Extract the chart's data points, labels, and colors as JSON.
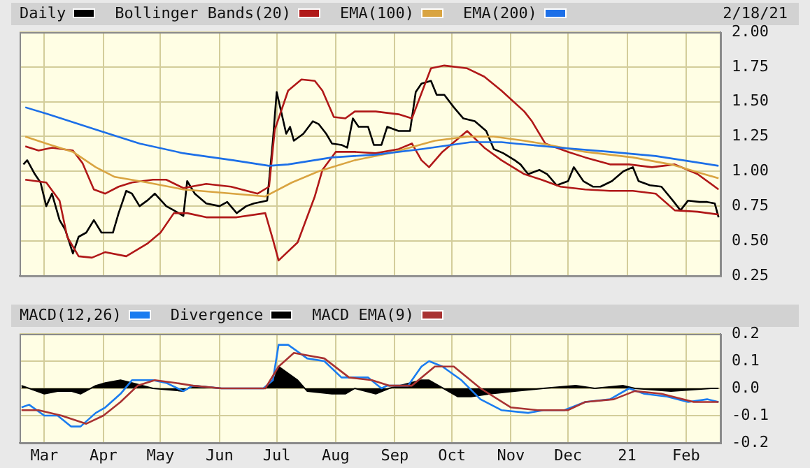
{
  "chart_data": [
    {
      "type": "line",
      "legend": "top",
      "grid": true,
      "tick_labels": "y",
      "annotations": [
        "2/18/21"
      ],
      "xlim": [
        "2020-02-17",
        "2021-02-19"
      ],
      "xticks": [
        {
          "value": "2020-03-01",
          "label": null
        },
        {
          "value": "2020-04-01",
          "label": null
        },
        {
          "value": "2020-05-01",
          "label": null
        },
        {
          "value": "2020-06-01",
          "label": null
        },
        {
          "value": "2020-07-01",
          "label": null
        },
        {
          "value": "2020-08-01",
          "label": null
        },
        {
          "value": "2020-09-01",
          "label": null
        },
        {
          "value": "2020-10-01",
          "label": null
        },
        {
          "value": "2020-11-01",
          "label": null
        },
        {
          "value": "2020-12-01",
          "label": null
        },
        {
          "value": "2021-01-01",
          "label": null
        },
        {
          "value": "2021-02-01",
          "label": null
        }
      ],
      "ylim": [
        0.25,
        2
      ],
      "yticks": [
        {
          "value": 0.25,
          "label": "0.25"
        },
        {
          "value": 0.5,
          "label": "0.50"
        },
        {
          "value": 0.75,
          "label": "0.75"
        },
        {
          "value": 1,
          "label": "1.00"
        },
        {
          "value": 1.25,
          "label": "1.25"
        },
        {
          "value": 1.5,
          "label": "1.50"
        },
        {
          "value": 1.75,
          "label": "1.75"
        },
        {
          "value": 2,
          "label": "2.00"
        }
      ],
      "series": [
        {
          "name": "Daily",
          "color": "#000000",
          "x": [
            "2020-02-19",
            "2020-02-21",
            "2020-02-25",
            "2020-02-28",
            "2020-03-02",
            "2020-03-05",
            "2020-03-09",
            "2020-03-12",
            "2020-03-16",
            "2020-03-19",
            "2020-03-23",
            "2020-03-27",
            "2020-03-31",
            "2020-04-06",
            "2020-04-09",
            "2020-04-13",
            "2020-04-16",
            "2020-04-20",
            "2020-04-24",
            "2020-04-28",
            "2020-05-04",
            "2020-05-08",
            "2020-05-13",
            "2020-05-15",
            "2020-05-19",
            "2020-05-25",
            "2020-06-01",
            "2020-06-05",
            "2020-06-10",
            "2020-06-15",
            "2020-06-19",
            "2020-06-26",
            "2020-06-29",
            "2020-07-01",
            "2020-07-06",
            "2020-07-08",
            "2020-07-10",
            "2020-07-15",
            "2020-07-20",
            "2020-07-23",
            "2020-07-27",
            "2020-07-30",
            "2020-08-04",
            "2020-08-07",
            "2020-08-10",
            "2020-08-13",
            "2020-08-18",
            "2020-08-21",
            "2020-08-25",
            "2020-08-28",
            "2020-09-03",
            "2020-09-09",
            "2020-09-12",
            "2020-09-15",
            "2020-09-20",
            "2020-09-23",
            "2020-09-27",
            "2020-10-02",
            "2020-10-07",
            "2020-10-13",
            "2020-10-19",
            "2020-10-23",
            "2020-10-28",
            "2020-11-03",
            "2020-11-06",
            "2020-11-10",
            "2020-11-16",
            "2020-11-20",
            "2020-11-25",
            "2020-12-01",
            "2020-12-04",
            "2020-12-09",
            "2020-12-14",
            "2020-12-18",
            "2020-12-24",
            "2020-12-30",
            "2021-01-04",
            "2021-01-07",
            "2021-01-13",
            "2021-01-19",
            "2021-01-25",
            "2021-01-29",
            "2021-02-02",
            "2021-02-08",
            "2021-02-12",
            "2021-02-16",
            "2021-02-18"
          ],
          "values": [
            1.05,
            1.08,
            0.98,
            0.92,
            0.75,
            0.84,
            0.65,
            0.58,
            0.41,
            0.53,
            0.56,
            0.65,
            0.56,
            0.56,
            0.7,
            0.86,
            0.84,
            0.75,
            0.79,
            0.84,
            0.75,
            0.72,
            0.68,
            0.93,
            0.84,
            0.77,
            0.75,
            0.78,
            0.7,
            0.75,
            0.77,
            0.79,
            1.22,
            1.57,
            1.27,
            1.32,
            1.22,
            1.27,
            1.36,
            1.34,
            1.27,
            1.2,
            1.19,
            1.17,
            1.38,
            1.32,
            1.32,
            1.19,
            1.19,
            1.32,
            1.29,
            1.29,
            1.57,
            1.63,
            1.65,
            1.55,
            1.55,
            1.46,
            1.38,
            1.36,
            1.29,
            1.16,
            1.13,
            1.08,
            1.05,
            0.98,
            1.01,
            0.98,
            0.9,
            0.93,
            1.03,
            0.93,
            0.89,
            0.89,
            0.93,
            1,
            1.03,
            0.93,
            0.9,
            0.89,
            0.79,
            0.72,
            0.79,
            0.78,
            0.78,
            0.77,
            0.67
          ]
        },
        {
          "name": "Bollinger Bands(20)",
          "color": "#b01818",
          "x": [
            "2020-02-20",
            "2020-02-27",
            "2020-03-05",
            "2020-03-16",
            "2020-03-21",
            "2020-03-27",
            "2020-04-02",
            "2020-04-09",
            "2020-04-16",
            "2020-04-27",
            "2020-05-04",
            "2020-05-13",
            "2020-05-25",
            "2020-06-07",
            "2020-06-21",
            "2020-06-27",
            "2020-06-30",
            "2020-07-07",
            "2020-07-14",
            "2020-07-21",
            "2020-07-25",
            "2020-07-31",
            "2020-08-06",
            "2020-08-11",
            "2020-08-22",
            "2020-09-03",
            "2020-09-10",
            "2020-09-20",
            "2020-09-27",
            "2020-10-09",
            "2020-10-18",
            "2020-10-27",
            "2020-11-08",
            "2020-11-12",
            "2020-11-19",
            "2020-12-01",
            "2020-12-10",
            "2020-12-23",
            "2021-01-02",
            "2021-01-14",
            "2021-01-26",
            "2021-02-07",
            "2021-02-18"
          ],
          "values": [
            1.18,
            1.15,
            1.17,
            1.15,
            1.06,
            0.87,
            0.84,
            0.89,
            0.92,
            0.94,
            0.94,
            0.88,
            0.91,
            0.89,
            0.84,
            0.89,
            1.3,
            1.58,
            1.66,
            1.65,
            1.58,
            1.39,
            1.38,
            1.43,
            1.43,
            1.41,
            1.38,
            1.74,
            1.76,
            1.74,
            1.68,
            1.58,
            1.43,
            1.36,
            1.2,
            1.14,
            1.1,
            1.05,
            1.05,
            1.03,
            1.05,
            0.98,
            0.87
          ]
        },
        {
          "color": "#b01818",
          "x": [
            "2020-02-20",
            "2020-03-02",
            "2020-03-09",
            "2020-03-13",
            "2020-03-19",
            "2020-03-26",
            "2020-04-02",
            "2020-04-13",
            "2020-04-24",
            "2020-05-01",
            "2020-05-08",
            "2020-05-15",
            "2020-05-25",
            "2020-06-10",
            "2020-06-25",
            "2020-06-29",
            "2020-07-02",
            "2020-07-12",
            "2020-07-21",
            "2020-07-25",
            "2020-08-01",
            "2020-08-11",
            "2020-08-22",
            "2020-09-03",
            "2020-09-10",
            "2020-09-15",
            "2020-09-19",
            "2020-09-26",
            "2020-10-09",
            "2020-10-18",
            "2020-10-27",
            "2020-11-08",
            "2020-11-17",
            "2020-11-27",
            "2020-12-10",
            "2020-12-23",
            "2021-01-04",
            "2021-01-16",
            "2021-01-26",
            "2021-02-07",
            "2021-02-18"
          ],
          "values": [
            0.94,
            0.92,
            0.79,
            0.53,
            0.39,
            0.38,
            0.42,
            0.39,
            0.48,
            0.56,
            0.7,
            0.7,
            0.67,
            0.67,
            0.7,
            0.51,
            0.36,
            0.49,
            0.82,
            1.01,
            1.14,
            1.14,
            1.13,
            1.16,
            1.2,
            1.08,
            1.03,
            1.14,
            1.29,
            1.17,
            1.08,
            0.98,
            0.94,
            0.89,
            0.87,
            0.86,
            0.86,
            0.84,
            0.72,
            0.71,
            0.69
          ]
        },
        {
          "name": "EMA(100)",
          "color": "#d9a441",
          "x": [
            "2020-02-20",
            "2020-03-02",
            "2020-03-16",
            "2020-03-28",
            "2020-04-07",
            "2020-04-24",
            "2020-05-13",
            "2020-06-08",
            "2020-06-25",
            "2020-07-09",
            "2020-07-23",
            "2020-08-11",
            "2020-08-29",
            "2020-09-22",
            "2020-10-09",
            "2020-10-23",
            "2020-11-08",
            "2020-11-17",
            "2020-12-10",
            "2021-01-04",
            "2021-01-24",
            "2021-02-18"
          ],
          "values": [
            1.25,
            1.2,
            1.14,
            1.03,
            0.96,
            0.92,
            0.87,
            0.84,
            0.82,
            0.92,
            1,
            1.08,
            1.13,
            1.22,
            1.25,
            1.25,
            1.22,
            1.2,
            1.14,
            1.1,
            1.05,
            0.95
          ]
        },
        {
          "name": "EMA(200)",
          "color": "#1c6fe8",
          "x": [
            "2020-02-20",
            "2020-03-03",
            "2020-03-28",
            "2020-04-20",
            "2020-05-13",
            "2020-06-08",
            "2020-06-27",
            "2020-07-07",
            "2020-07-30",
            "2020-08-22",
            "2020-09-15",
            "2020-10-11",
            "2020-10-27",
            "2020-11-03",
            "2020-11-27",
            "2020-12-23",
            "2021-01-16",
            "2021-02-18"
          ],
          "values": [
            1.46,
            1.41,
            1.3,
            1.2,
            1.13,
            1.08,
            1.04,
            1.05,
            1.1,
            1.12,
            1.16,
            1.21,
            1.21,
            1.2,
            1.17,
            1.14,
            1.11,
            1.04
          ]
        }
      ]
    },
    {
      "type": "line",
      "legend": "top",
      "grid": true,
      "xlim": [
        "2020-02-17",
        "2021-02-19"
      ],
      "xticks": [
        {
          "value": "2020-03-01",
          "label": "Mar"
        },
        {
          "value": "2020-04-01",
          "label": "Apr"
        },
        {
          "value": "2020-05-01",
          "label": "May"
        },
        {
          "value": "2020-06-01",
          "label": "Jun"
        },
        {
          "value": "2020-07-01",
          "label": "Jul"
        },
        {
          "value": "2020-08-01",
          "label": "Aug"
        },
        {
          "value": "2020-09-01",
          "label": "Sep"
        },
        {
          "value": "2020-10-01",
          "label": "Oct"
        },
        {
          "value": "2020-11-01",
          "label": "Nov"
        },
        {
          "value": "2020-12-01",
          "label": "Dec"
        },
        {
          "value": "2021-01-01",
          "label": "21"
        },
        {
          "value": "2021-02-01",
          "label": "Feb"
        }
      ],
      "ylim": [
        -0.2,
        0.2
      ],
      "yticks": [
        {
          "value": -0.2,
          "label": "-0.2"
        },
        {
          "value": -0.1,
          "label": "-0.1"
        },
        {
          "value": 0,
          "label": "0.0"
        },
        {
          "value": 0.1,
          "label": "0.1"
        },
        {
          "value": 0.2,
          "label": "0.2"
        }
      ],
      "series": [
        {
          "name": "MACD(12,26)",
          "color": "#1a7cf0",
          "x": [
            "2020-02-18",
            "2020-02-22",
            "2020-03-01",
            "2020-03-08",
            "2020-03-15",
            "2020-03-20",
            "2020-03-28",
            "2020-04-02",
            "2020-04-10",
            "2020-04-16",
            "2020-04-27",
            "2020-05-04",
            "2020-05-13",
            "2020-05-18",
            "2020-06-02",
            "2020-06-24",
            "2020-06-29",
            "2020-07-02",
            "2020-07-07",
            "2020-07-17",
            "2020-07-26",
            "2020-08-04",
            "2020-08-11",
            "2020-08-18",
            "2020-08-25",
            "2020-08-28",
            "2020-09-08",
            "2020-09-15",
            "2020-09-19",
            "2020-09-26",
            "2020-10-06",
            "2020-10-16",
            "2020-10-27",
            "2020-11-10",
            "2020-11-18",
            "2020-11-29",
            "2020-12-10",
            "2020-12-23",
            "2021-01-02",
            "2021-01-10",
            "2021-01-22",
            "2021-02-02",
            "2021-02-12",
            "2021-02-18"
          ],
          "values": [
            -0.07,
            -0.06,
            -0.1,
            -0.1,
            -0.14,
            -0.14,
            -0.09,
            -0.07,
            -0.02,
            0.03,
            0.03,
            0.02,
            -0.01,
            0.01,
            0,
            0,
            0.03,
            0.16,
            0.16,
            0.11,
            0.1,
            0.04,
            0.04,
            0.04,
            0,
            0.01,
            0.01,
            0.08,
            0.1,
            0.08,
            0.03,
            -0.04,
            -0.08,
            -0.09,
            -0.08,
            -0.08,
            -0.05,
            -0.04,
            0,
            -0.02,
            -0.03,
            -0.05,
            -0.04,
            -0.05
          ]
        },
        {
          "name": "Divergence",
          "type": "area",
          "color": "#000000",
          "x": [
            "2020-02-18",
            "2020-03-01",
            "2020-03-08",
            "2020-03-15",
            "2020-03-20",
            "2020-03-28",
            "2020-04-02",
            "2020-04-10",
            "2020-04-16",
            "2020-04-27",
            "2020-05-13",
            "2020-05-18",
            "2020-06-02",
            "2020-06-25",
            "2020-06-30",
            "2020-07-02",
            "2020-07-12",
            "2020-07-17",
            "2020-07-30",
            "2020-08-06",
            "2020-08-11",
            "2020-08-22",
            "2020-08-29",
            "2020-09-15",
            "2020-09-19",
            "2020-10-04",
            "2020-10-11",
            "2020-10-21",
            "2020-11-03",
            "2020-11-18",
            "2020-12-05",
            "2020-12-15",
            "2020-12-30",
            "2021-01-05",
            "2021-01-24",
            "2021-02-14",
            "2021-02-18"
          ],
          "values": [
            0.01,
            -0.02,
            -0.01,
            -0.01,
            -0.02,
            0.01,
            0.02,
            0.03,
            0.02,
            0,
            -0.01,
            0.01,
            0,
            0,
            0.04,
            0.08,
            0.03,
            -0.01,
            -0.02,
            -0.02,
            0,
            -0.02,
            0,
            0.03,
            0.03,
            -0.03,
            -0.03,
            -0.02,
            -0.01,
            0,
            0.01,
            0,
            0.01,
            0,
            -0.01,
            0,
            0
          ]
        },
        {
          "name": "MACD EMA(9)",
          "color": "#a83232",
          "x": [
            "2020-02-18",
            "2020-02-27",
            "2020-03-10",
            "2020-03-23",
            "2020-04-01",
            "2020-04-10",
            "2020-04-19",
            "2020-04-28",
            "2020-05-09",
            "2020-05-18",
            "2020-06-02",
            "2020-06-25",
            "2020-07-02",
            "2020-07-10",
            "2020-07-26",
            "2020-08-08",
            "2020-08-20",
            "2020-08-29",
            "2020-09-10",
            "2020-09-22",
            "2020-10-02",
            "2020-10-16",
            "2020-11-01",
            "2020-11-15",
            "2020-12-01",
            "2020-12-10",
            "2020-12-25",
            "2021-01-05",
            "2021-01-19",
            "2021-02-05",
            "2021-02-18"
          ],
          "values": [
            -0.08,
            -0.08,
            -0.1,
            -0.13,
            -0.1,
            -0.05,
            0.01,
            0.03,
            0.02,
            0.01,
            0,
            0,
            0.08,
            0.13,
            0.11,
            0.04,
            0.03,
            0.01,
            0.01,
            0.08,
            0.08,
            0,
            -0.07,
            -0.08,
            -0.08,
            -0.05,
            -0.04,
            -0.01,
            -0.02,
            -0.05,
            -0.05
          ]
        }
      ]
    }
  ]
}
